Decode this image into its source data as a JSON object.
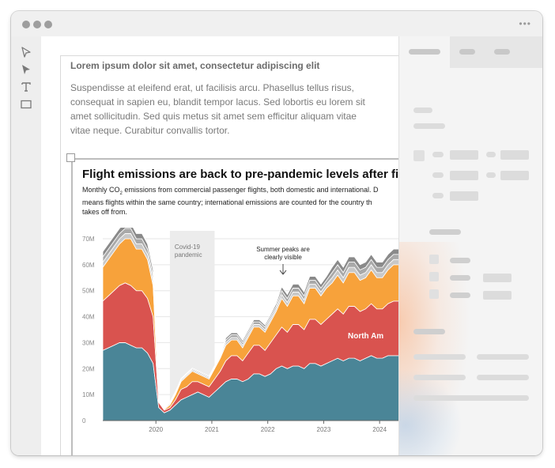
{
  "window": {
    "controls": [
      "close",
      "minimize",
      "maximize"
    ],
    "menu_icon": "more-horizontal-icon"
  },
  "tools": [
    {
      "name": "select-arrow-outline-icon"
    },
    {
      "name": "direct-select-arrow-icon"
    },
    {
      "name": "text-tool-icon"
    },
    {
      "name": "rectangle-tool-icon"
    }
  ],
  "document": {
    "heading": "Lorem ipsum dolor sit amet, consectetur adipiscing elit",
    "body": "Suspendisse at eleifend erat, ut facilisis arcu. Phasellus tellus risus, consequat in sapien eu, blandit tempor lacus. Sed lobortis eu lorem sit amet sollicitudin. Sed quis metus sit amet sem efficitur aliquam vitae vitae neque. Curabitur convallis tortor."
  },
  "chart": {
    "title": "Flight emissions are back to pre-pandemic levels after five",
    "subtitle_pre": "Monthly CO",
    "subtitle_sub": "2",
    "subtitle_post": " emissions from commercial passenger flights, both domestic and international. D\nmeans flights within the same country; international emissions are counted for the country th\ntakes off from.",
    "annotation_covid": "Covid-19\npandemic",
    "annotation_summer": "Summer peaks are\nclearly visible",
    "series_label_north_america": "North Am",
    "colors": {
      "north_america": "#4a8597",
      "europe": "#d9534f",
      "asia": "#f7a23b",
      "other1": "#c8c8c8",
      "other2": "#a9a9a9",
      "other3": "#8a8a8a",
      "covid_band": "#ececec"
    }
  },
  "chart_data": {
    "type": "area",
    "title": "Flight emissions are back to pre-pandemic levels after five",
    "xlabel": "",
    "ylabel": "",
    "x_ticks": [
      "2020",
      "2021",
      "2022",
      "2023",
      "2024"
    ],
    "y_ticks": [
      "0",
      "10M",
      "20M",
      "30M",
      "40M",
      "50M",
      "60M",
      "70M"
    ],
    "ylim": [
      0,
      70000000
    ],
    "xlim": [
      2019.1,
      2024.5
    ],
    "stacked": true,
    "x": [
      2019.1,
      2019.2,
      2019.3,
      2019.4,
      2019.5,
      2019.6,
      2019.7,
      2019.8,
      2019.9,
      2020.0,
      2020.1,
      2020.2,
      2020.3,
      2020.4,
      2020.5,
      2020.6,
      2020.7,
      2020.8,
      2020.9,
      2021.0,
      2021.1,
      2021.2,
      2021.3,
      2021.4,
      2021.5,
      2021.6,
      2021.7,
      2021.8,
      2021.9,
      2022.0,
      2022.1,
      2022.2,
      2022.3,
      2022.4,
      2022.5,
      2022.6,
      2022.7,
      2022.8,
      2022.9,
      2023.0,
      2023.1,
      2023.2,
      2023.3,
      2023.4,
      2023.5,
      2023.6,
      2023.7,
      2023.8,
      2023.9,
      2024.0,
      2024.1,
      2024.2,
      2024.3,
      2024.4,
      2024.5
    ],
    "series": [
      {
        "name": "North Am",
        "values": [
          27,
          28,
          29,
          30,
          30,
          29,
          28,
          28,
          26,
          22,
          5,
          3,
          4,
          6,
          8,
          9,
          10,
          11,
          10,
          9,
          11,
          13,
          15,
          16,
          16,
          15,
          16,
          18,
          18,
          17,
          18,
          20,
          21,
          20,
          21,
          21,
          20,
          22,
          22,
          21,
          22,
          23,
          24,
          23,
          24,
          24,
          23,
          24,
          25,
          24,
          24,
          25,
          25,
          25,
          25
        ]
      },
      {
        "name": "",
        "values": [
          19,
          20,
          21,
          22,
          23,
          23,
          22,
          22,
          21,
          18,
          2,
          1,
          1,
          2,
          4,
          4,
          5,
          4,
          4,
          4,
          5,
          6,
          8,
          9,
          9,
          8,
          10,
          11,
          11,
          10,
          12,
          13,
          15,
          14,
          16,
          16,
          15,
          17,
          17,
          16,
          17,
          18,
          19,
          18,
          20,
          20,
          19,
          19,
          20,
          19,
          19,
          20,
          21,
          21,
          21
        ]
      },
      {
        "name": "",
        "values": [
          13,
          14,
          15,
          16,
          17,
          18,
          16,
          16,
          15,
          12,
          0.5,
          0.3,
          1,
          2,
          3,
          4,
          4,
          3,
          3,
          3,
          4,
          5,
          6,
          6,
          6,
          5,
          6,
          7,
          7,
          7,
          8,
          9,
          11,
          10,
          11,
          11,
          10,
          12,
          12,
          11,
          12,
          12,
          13,
          12,
          13,
          13,
          12,
          12,
          13,
          12,
          12,
          13,
          14,
          14,
          14
        ]
      },
      {
        "name": "",
        "values": [
          2,
          2,
          2,
          2,
          2,
          2,
          2,
          2,
          2,
          2,
          0.5,
          0.3,
          0.5,
          0.5,
          0.5,
          0.5,
          0.5,
          0.5,
          0.5,
          0.5,
          0.5,
          0.6,
          1,
          1,
          1,
          1,
          1,
          1,
          1,
          1,
          1,
          1,
          1.5,
          1.5,
          1.5,
          1.5,
          1.5,
          1.5,
          1.5,
          1.5,
          1.5,
          2,
          2,
          2,
          2,
          2,
          2,
          2,
          2,
          2,
          2,
          2,
          2,
          2,
          2
        ]
      },
      {
        "name": "",
        "values": [
          2,
          2,
          2,
          2,
          2,
          2,
          2,
          2,
          2,
          2,
          0.3,
          0.2,
          0.4,
          0.4,
          0.4,
          0.4,
          0.4,
          0.4,
          0.4,
          0.4,
          0.4,
          0.5,
          1,
          1,
          1,
          1,
          1,
          1,
          1,
          1,
          1,
          1,
          1.5,
          1.5,
          1.5,
          1.5,
          1.5,
          1.5,
          1.5,
          1.5,
          1.5,
          2,
          2,
          2,
          2,
          2,
          2,
          2,
          2,
          2,
          2,
          2,
          2,
          2,
          2
        ]
      },
      {
        "name": "",
        "values": [
          2,
          2,
          2,
          2,
          2,
          2,
          2,
          2,
          2,
          2,
          0.2,
          0.2,
          0.3,
          0.3,
          0.3,
          0.3,
          0.3,
          0.3,
          0.3,
          0.3,
          0.3,
          0.4,
          0.8,
          0.8,
          0.8,
          0.8,
          0.8,
          0.8,
          0.8,
          0.8,
          0.8,
          1,
          1.5,
          1.5,
          1.5,
          1.5,
          1.5,
          1.5,
          1.5,
          1.5,
          1.5,
          2,
          2,
          2,
          2,
          2,
          2,
          2,
          2,
          2,
          2,
          2,
          2,
          2,
          2
        ]
      }
    ],
    "annotations": [
      "Covid-19 pandemic",
      "Summer peaks are clearly visible"
    ],
    "covid_band": [
      2020.3,
      2021.1
    ]
  },
  "panel": {
    "tabs": [
      {
        "name": "tab-1",
        "active": true
      },
      {
        "name": "tab-2",
        "active": false
      },
      {
        "name": "tab-3",
        "active": false
      }
    ]
  }
}
